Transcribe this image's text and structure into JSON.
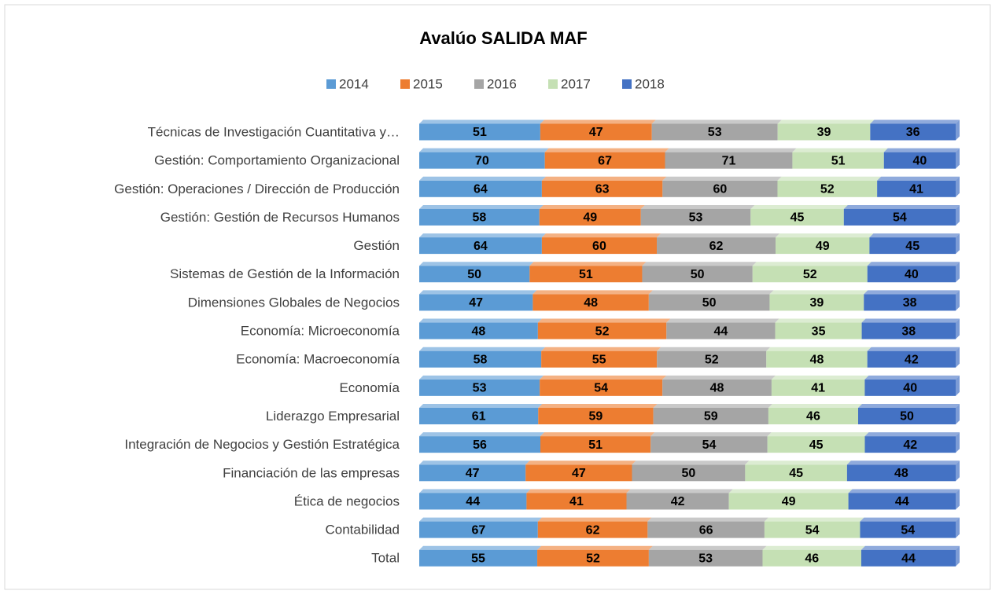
{
  "chart_data": {
    "type": "stacked-bar-percent",
    "title": "Avalúo SALIDA MAF",
    "categories": [
      "Técnicas de Investigación Cuantitativa y…",
      "Gestión: Comportamiento Organizacional",
      "Gestión: Operaciones / Dirección de Producción",
      "Gestión: Gestión de Recursos Humanos",
      "Gestión",
      "Sistemas de Gestión de la Información",
      "Dimensiones Globales de Negocios",
      "Economía: Microeconomía",
      "Economía: Macroeconomía",
      "Economía",
      "Liderazgo Empresarial",
      "Integración de Negocios y Gestión Estratégica",
      "Financiación de las empresas",
      "Ética de negocios",
      "Contabilidad",
      "Total"
    ],
    "series": [
      {
        "name": "2014",
        "color": "#5b9bd5",
        "values": [
          51,
          70,
          64,
          58,
          64,
          50,
          47,
          48,
          58,
          53,
          61,
          56,
          47,
          44,
          67,
          55
        ]
      },
      {
        "name": "2015",
        "color": "#ed7d31",
        "values": [
          47,
          67,
          63,
          49,
          60,
          51,
          48,
          52,
          55,
          54,
          59,
          51,
          47,
          41,
          62,
          52
        ]
      },
      {
        "name": "2016",
        "color": "#a5a5a5",
        "values": [
          53,
          71,
          60,
          53,
          62,
          50,
          50,
          44,
          52,
          48,
          59,
          54,
          50,
          42,
          66,
          53
        ]
      },
      {
        "name": "2017",
        "color": "#c5e0b4",
        "values": [
          39,
          51,
          52,
          45,
          49,
          52,
          39,
          35,
          48,
          41,
          46,
          45,
          45,
          49,
          54,
          46
        ]
      },
      {
        "name": "2018",
        "color": "#4472c4",
        "values": [
          36,
          40,
          41,
          54,
          45,
          40,
          38,
          38,
          42,
          40,
          50,
          42,
          48,
          44,
          54,
          44
        ]
      }
    ],
    "legend": "top"
  }
}
